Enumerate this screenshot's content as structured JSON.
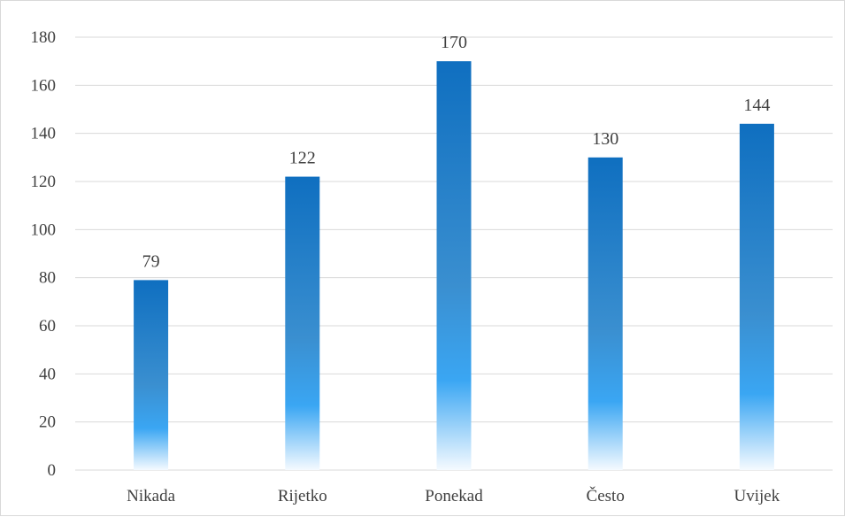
{
  "chart_data": {
    "type": "bar",
    "title": "",
    "xlabel": "",
    "ylabel": "",
    "categories": [
      "Nikada",
      "Rijetko",
      "Ponekad",
      "Često",
      "Uvijek"
    ],
    "values": [
      79,
      122,
      170,
      130,
      144
    ],
    "data_labels": [
      "79",
      "122",
      "170",
      "130",
      "144"
    ],
    "y_ticks": [
      "0",
      "20",
      "40",
      "60",
      "80",
      "100",
      "120",
      "140",
      "160",
      "180"
    ],
    "ylim": [
      0,
      180
    ],
    "grid": true,
    "legend": "none",
    "colors": {
      "bar_top": "#0f6fc0",
      "bar_mid": "#3aa6f3",
      "bar_bottom": "#f5faff",
      "gridline": "#d9d9d9",
      "text": "#404040"
    }
  }
}
